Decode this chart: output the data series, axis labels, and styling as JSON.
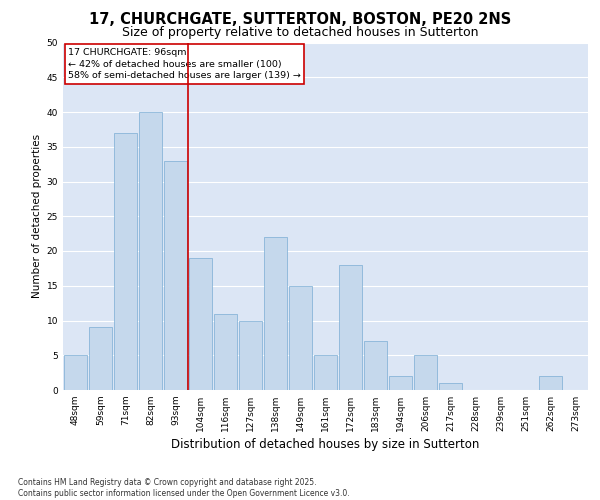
{
  "title": "17, CHURCHGATE, SUTTERTON, BOSTON, PE20 2NS",
  "subtitle": "Size of property relative to detached houses in Sutterton",
  "xlabel": "Distribution of detached houses by size in Sutterton",
  "ylabel": "Number of detached properties",
  "categories": [
    "48sqm",
    "59sqm",
    "71sqm",
    "82sqm",
    "93sqm",
    "104sqm",
    "116sqm",
    "127sqm",
    "138sqm",
    "149sqm",
    "161sqm",
    "172sqm",
    "183sqm",
    "194sqm",
    "206sqm",
    "217sqm",
    "228sqm",
    "239sqm",
    "251sqm",
    "262sqm",
    "273sqm"
  ],
  "values": [
    5,
    9,
    37,
    40,
    33,
    19,
    11,
    10,
    22,
    15,
    5,
    18,
    7,
    2,
    5,
    1,
    0,
    0,
    0,
    2,
    0
  ],
  "bar_color": "#c5d8ec",
  "bar_edgecolor": "#7aadd4",
  "background_color": "#dce6f5",
  "vline_color": "#cc0000",
  "vline_x": 4.5,
  "annotation_text": "17 CHURCHGATE: 96sqm\n← 42% of detached houses are smaller (100)\n58% of semi-detached houses are larger (139) →",
  "annotation_box_color": "#ffffff",
  "annotation_box_edgecolor": "#cc0000",
  "footer": "Contains HM Land Registry data © Crown copyright and database right 2025.\nContains public sector information licensed under the Open Government Licence v3.0.",
  "ylim": [
    0,
    50
  ],
  "yticks": [
    0,
    5,
    10,
    15,
    20,
    25,
    30,
    35,
    40,
    45,
    50
  ],
  "title_fontsize": 10.5,
  "subtitle_fontsize": 9,
  "xlabel_fontsize": 8.5,
  "ylabel_fontsize": 7.5,
  "tick_fontsize": 6.5,
  "annotation_fontsize": 6.8,
  "footer_fontsize": 5.5
}
